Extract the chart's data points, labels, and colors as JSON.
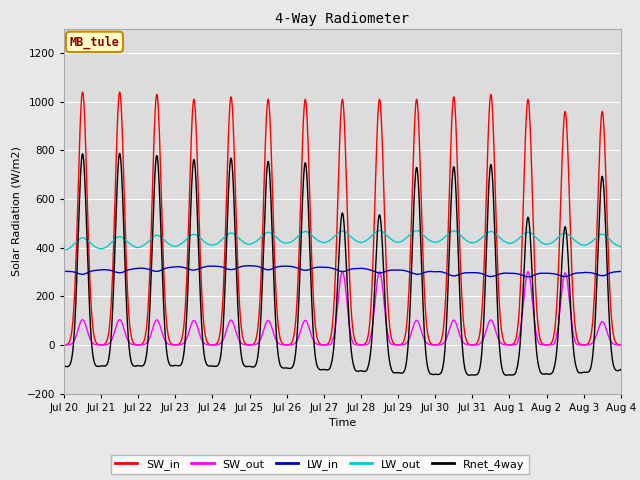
{
  "title": "4-Way Radiometer",
  "xlabel": "Time",
  "ylabel": "Solar Radiation (W/m2)",
  "ylim": [
    -200,
    1300
  ],
  "yticks": [
    -200,
    0,
    200,
    400,
    600,
    800,
    1000,
    1200
  ],
  "fig_bg_color": "#e8e8e8",
  "plot_bg_color": "#dcdcdc",
  "annotation_text": "MB_tule",
  "annotation_bg": "#ffffcc",
  "annotation_border": "#cc8800",
  "series_colors": {
    "SW_in": "#ff0000",
    "SW_out": "#ff00ff",
    "LW_in": "#0000cc",
    "LW_out": "#00cccc",
    "Rnet_4way": "#000000"
  },
  "series_lw": 1.0,
  "legend_series": [
    "SW_in",
    "SW_out",
    "LW_in",
    "LW_out",
    "Rnet_4way"
  ],
  "legend_colors": [
    "#ff0000",
    "#ff00ff",
    "#0000cc",
    "#00cccc",
    "#000000"
  ],
  "n_days": 15,
  "points_per_day": 288,
  "tick_labels": [
    "Jul 20",
    "Jul 21",
    "Jul 22",
    "Jul 23",
    "Jul 24",
    "Jul 25",
    "Jul 26",
    "Jul 27",
    "Jul 28",
    "Jul 29",
    "Jul 30",
    "Jul 31",
    "Aug 1",
    "Aug 2",
    "Aug 3",
    "Aug 4"
  ]
}
